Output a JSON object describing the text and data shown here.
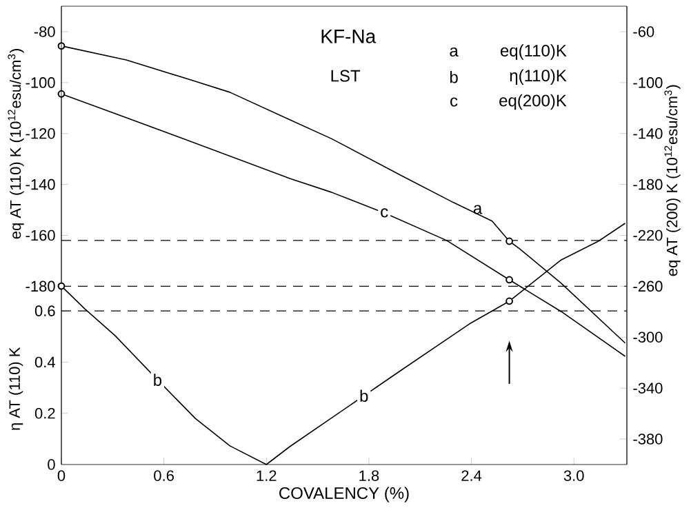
{
  "chart_data": {
    "type": "line",
    "title": "KF-Na",
    "subtitle": "LST",
    "xlabel": "COVALENCY  (%)",
    "ylabel": "eq AT (110) K (10$^{12}$esu/cm$^{3}$)",
    "y2label": "eq AT (200) K (10$^{12}$esu/cm$^{3}$)",
    "y3label": "η AT (110) K",
    "xlim": [
      0,
      3.31
    ],
    "xticks": [
      0,
      0.6,
      1.2,
      1.8,
      2.4,
      {
        "value": 3,
        "label": "3.0"
      }
    ],
    "ylim": [
      -250,
      -70
    ],
    "yticks": [
      -80,
      -100,
      -120,
      -140,
      -160,
      -180
    ],
    "y2lim": [
      -400,
      -40
    ],
    "y2ticks": [
      -60,
      -100,
      -140,
      -180,
      -220,
      -260,
      -300,
      -340,
      -380
    ],
    "y3lim": [
      0,
      1.79
    ],
    "y3ticks": [
      0,
      0.2,
      0.4,
      0.6
    ],
    "series": [
      {
        "name": "a",
        "type": "line",
        "axis": "y",
        "color": "#000000",
        "x": [
          0,
          0.38,
          0.784,
          0.986,
          1.337,
          1.58,
          1.984,
          2.295,
          2.521,
          2.622,
          2.683,
          2.925,
          3.3
        ],
        "values": [
          -85.6,
          -91.1,
          -99.5,
          -103.8,
          -114.6,
          -122,
          -136.3,
          -147.1,
          -154.4,
          -162.3,
          -165.3,
          -178.8,
          -202.3
        ]
      },
      {
        "name": "b",
        "type": "line",
        "axis": "y3",
        "color": "#000000",
        "x": [
          0,
          0.137,
          0.315,
          0.558,
          0.784,
          0.986,
          1.2,
          1.337,
          1.984,
          2.388,
          2.622,
          2.925,
          3.143,
          3.3
        ],
        "values": [
          0.697,
          0.608,
          0.503,
          0.334,
          0.18,
          0.073,
          0,
          0.07,
          0.366,
          0.549,
          0.638,
          0.799,
          0.872,
          0.942
        ]
      },
      {
        "name": "c",
        "type": "line",
        "axis": "y2",
        "color": "#000000",
        "x": [
          0,
          0.38,
          0.719,
          1.337,
          1.58,
          1.891,
          2.255,
          2.622,
          2.925,
          3.3
        ],
        "values": [
          -108.9,
          -127.5,
          -144.4,
          -175.3,
          -186.1,
          -202.4,
          -224,
          -254.9,
          -279.8,
          -315
        ]
      },
      {
        "type": "scatter",
        "axis": "y",
        "marker": "circle",
        "color": "#000000",
        "x": [
          0,
          2.622
        ],
        "values": [
          -85.6,
          -162.3
        ]
      },
      {
        "type": "scatter",
        "axis": "y3",
        "marker": "circle",
        "color": "#000000",
        "x": [
          0,
          2.622
        ],
        "values": [
          0.697,
          0.638
        ]
      },
      {
        "type": "scatter",
        "axis": "y2",
        "marker": "circle",
        "color": "#000000",
        "x": [
          0,
          2.622
        ],
        "values": [
          -108.9,
          -254.9
        ]
      }
    ],
    "ref_lines": [
      {
        "axis": "y",
        "value": -162,
        "line_style": "dashed",
        "color": "#000000"
      },
      {
        "axis": "y",
        "value": -180,
        "line_style": "dashed",
        "color": "#000000"
      },
      {
        "axis": "y3",
        "value": 0.6,
        "line_style": "dashed",
        "color": "#000000"
      }
    ],
    "annotations": [
      "a",
      "eq(110)K",
      "b",
      "η(110)K",
      "c",
      "eq(200)K"
    ]
  }
}
